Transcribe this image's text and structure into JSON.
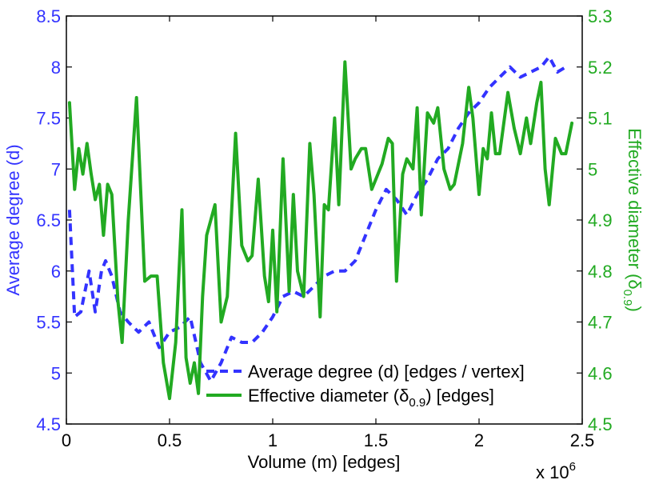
{
  "chart_data": {
    "type": "line",
    "xlabel": "Volume (m) [edges]",
    "x_multiplier_label": "x 10",
    "x_multiplier_exp": "6",
    "xlim": [
      0,
      2.5
    ],
    "xticks": [
      "0",
      "0.5",
      "1",
      "1.5",
      "2",
      "2.5"
    ],
    "y_left": {
      "label": "Average degree (d)",
      "lim": [
        4.5,
        8.5
      ],
      "ticks": [
        "4.5",
        "5",
        "5.5",
        "6",
        "6.5",
        "7",
        "7.5",
        "8",
        "8.5"
      ],
      "color": "#3333ff"
    },
    "y_right": {
      "label_main": "Effective diameter (δ",
      "label_sub": "0.9",
      "label_tail": ")",
      "lim": [
        4.5,
        5.3
      ],
      "ticks": [
        "4.5",
        "4.6",
        "4.7",
        "4.8",
        "4.9",
        "5",
        "5.1",
        "5.2",
        "5.3"
      ],
      "color": "#22aa22"
    },
    "legend_position": "bottom-right",
    "series": [
      {
        "name": "Average degree (d) [edges / vertex]",
        "axis": "left",
        "color": "#3333ff",
        "style": "dashed",
        "points": [
          [
            0.015,
            6.6
          ],
          [
            0.04,
            5.55
          ],
          [
            0.07,
            5.6
          ],
          [
            0.11,
            6.0
          ],
          [
            0.14,
            5.6
          ],
          [
            0.17,
            6.0
          ],
          [
            0.19,
            6.1
          ],
          [
            0.22,
            5.95
          ],
          [
            0.26,
            5.6
          ],
          [
            0.3,
            5.5
          ],
          [
            0.35,
            5.4
          ],
          [
            0.4,
            5.5
          ],
          [
            0.43,
            5.35
          ],
          [
            0.45,
            5.25
          ],
          [
            0.5,
            5.4
          ],
          [
            0.55,
            5.45
          ],
          [
            0.6,
            5.55
          ],
          [
            0.65,
            5.1
          ],
          [
            0.7,
            4.92
          ],
          [
            0.75,
            5.1
          ],
          [
            0.8,
            5.35
          ],
          [
            0.85,
            5.3
          ],
          [
            0.9,
            5.3
          ],
          [
            0.95,
            5.4
          ],
          [
            1.0,
            5.55
          ],
          [
            1.05,
            5.75
          ],
          [
            1.1,
            5.8
          ],
          [
            1.15,
            5.75
          ],
          [
            1.2,
            5.85
          ],
          [
            1.25,
            5.95
          ],
          [
            1.3,
            6.0
          ],
          [
            1.35,
            6.0
          ],
          [
            1.4,
            6.1
          ],
          [
            1.45,
            6.35
          ],
          [
            1.5,
            6.6
          ],
          [
            1.55,
            6.8
          ],
          [
            1.6,
            6.7
          ],
          [
            1.65,
            6.55
          ],
          [
            1.7,
            6.75
          ],
          [
            1.75,
            6.9
          ],
          [
            1.8,
            7.1
          ],
          [
            1.85,
            7.2
          ],
          [
            1.9,
            7.4
          ],
          [
            1.95,
            7.55
          ],
          [
            2.0,
            7.65
          ],
          [
            2.05,
            7.8
          ],
          [
            2.1,
            7.9
          ],
          [
            2.15,
            8.0
          ],
          [
            2.2,
            7.9
          ],
          [
            2.25,
            7.95
          ],
          [
            2.3,
            8.0
          ],
          [
            2.34,
            8.1
          ],
          [
            2.38,
            7.95
          ],
          [
            2.42,
            8.0
          ]
        ]
      },
      {
        "name": "Effective diameter (δ0.9) [edges]",
        "axis": "right",
        "color": "#22aa22",
        "style": "solid",
        "points": [
          [
            0.015,
            5.13
          ],
          [
            0.04,
            4.96
          ],
          [
            0.06,
            5.04
          ],
          [
            0.08,
            4.99
          ],
          [
            0.1,
            5.05
          ],
          [
            0.12,
            4.99
          ],
          [
            0.14,
            4.94
          ],
          [
            0.16,
            4.97
          ],
          [
            0.18,
            4.87
          ],
          [
            0.2,
            4.97
          ],
          [
            0.22,
            4.95
          ],
          [
            0.25,
            4.74
          ],
          [
            0.27,
            4.66
          ],
          [
            0.3,
            4.9
          ],
          [
            0.34,
            5.14
          ],
          [
            0.38,
            4.78
          ],
          [
            0.41,
            4.79
          ],
          [
            0.44,
            4.79
          ],
          [
            0.47,
            4.62
          ],
          [
            0.5,
            4.55
          ],
          [
            0.53,
            4.66
          ],
          [
            0.56,
            4.92
          ],
          [
            0.58,
            4.63
          ],
          [
            0.6,
            4.58
          ],
          [
            0.62,
            4.62
          ],
          [
            0.64,
            4.56
          ],
          [
            0.66,
            4.75
          ],
          [
            0.68,
            4.87
          ],
          [
            0.72,
            4.93
          ],
          [
            0.75,
            4.7
          ],
          [
            0.78,
            4.75
          ],
          [
            0.82,
            5.07
          ],
          [
            0.85,
            4.85
          ],
          [
            0.88,
            4.82
          ],
          [
            0.9,
            4.83
          ],
          [
            0.93,
            4.98
          ],
          [
            0.96,
            4.79
          ],
          [
            0.98,
            4.74
          ],
          [
            1.0,
            4.88
          ],
          [
            1.02,
            4.72
          ],
          [
            1.05,
            5.02
          ],
          [
            1.08,
            4.76
          ],
          [
            1.1,
            4.95
          ],
          [
            1.12,
            4.8
          ],
          [
            1.15,
            4.75
          ],
          [
            1.18,
            5.05
          ],
          [
            1.2,
            4.95
          ],
          [
            1.23,
            4.71
          ],
          [
            1.25,
            4.93
          ],
          [
            1.27,
            4.92
          ],
          [
            1.3,
            5.1
          ],
          [
            1.32,
            4.93
          ],
          [
            1.35,
            5.21
          ],
          [
            1.38,
            5.0
          ],
          [
            1.4,
            5.02
          ],
          [
            1.43,
            5.04
          ],
          [
            1.45,
            5.04
          ],
          [
            1.48,
            4.96
          ],
          [
            1.5,
            4.98
          ],
          [
            1.53,
            5.01
          ],
          [
            1.56,
            5.06
          ],
          [
            1.58,
            5.05
          ],
          [
            1.6,
            4.78
          ],
          [
            1.63,
            4.99
          ],
          [
            1.65,
            5.02
          ],
          [
            1.68,
            5.0
          ],
          [
            1.7,
            5.12
          ],
          [
            1.72,
            4.91
          ],
          [
            1.75,
            5.11
          ],
          [
            1.78,
            5.09
          ],
          [
            1.8,
            5.12
          ],
          [
            1.83,
            5.0
          ],
          [
            1.86,
            4.96
          ],
          [
            1.88,
            4.97
          ],
          [
            1.92,
            5.05
          ],
          [
            1.95,
            5.16
          ],
          [
            1.97,
            5.1
          ],
          [
            2.0,
            4.95
          ],
          [
            2.02,
            5.04
          ],
          [
            2.04,
            5.02
          ],
          [
            2.06,
            5.11
          ],
          [
            2.08,
            5.03
          ],
          [
            2.1,
            5.03
          ],
          [
            2.14,
            5.15
          ],
          [
            2.17,
            5.08
          ],
          [
            2.2,
            5.03
          ],
          [
            2.23,
            5.1
          ],
          [
            2.25,
            5.05
          ],
          [
            2.28,
            5.13
          ],
          [
            2.3,
            5.17
          ],
          [
            2.32,
            5.0
          ],
          [
            2.34,
            4.93
          ],
          [
            2.37,
            5.06
          ],
          [
            2.4,
            5.03
          ],
          [
            2.42,
            5.03
          ],
          [
            2.45,
            5.09
          ]
        ]
      }
    ]
  }
}
